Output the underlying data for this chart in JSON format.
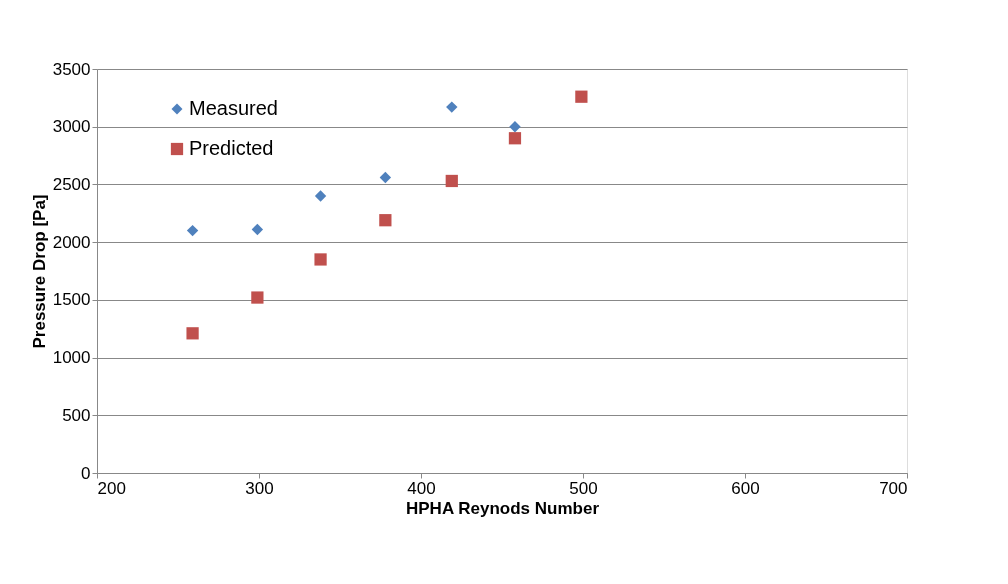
{
  "chart_data": {
    "type": "scatter",
    "xlabel": "HPHA Reynods Number",
    "ylabel": "Pressure Drop [Pa]",
    "x": [
      259,
      299,
      338,
      378,
      419,
      458,
      499
    ],
    "series": [
      {
        "name": "Measured",
        "color": "#4f81bd",
        "marker": "diamond",
        "values": [
          2100,
          2110,
          2400,
          2560,
          3170,
          3000,
          null
        ]
      },
      {
        "name": "Predicted",
        "color": "#c0504d",
        "marker": "square",
        "values": [
          1210,
          1520,
          1850,
          2190,
          2530,
          2900,
          3260
        ]
      }
    ],
    "xlim": [
      200,
      700
    ],
    "xticks": [
      200,
      300,
      400,
      500,
      600,
      700
    ],
    "ylim": [
      0,
      3500
    ],
    "yticks": [
      0,
      500,
      1000,
      1500,
      2000,
      2500,
      3000,
      3500
    ],
    "grid": "y",
    "legend": "top left"
  }
}
